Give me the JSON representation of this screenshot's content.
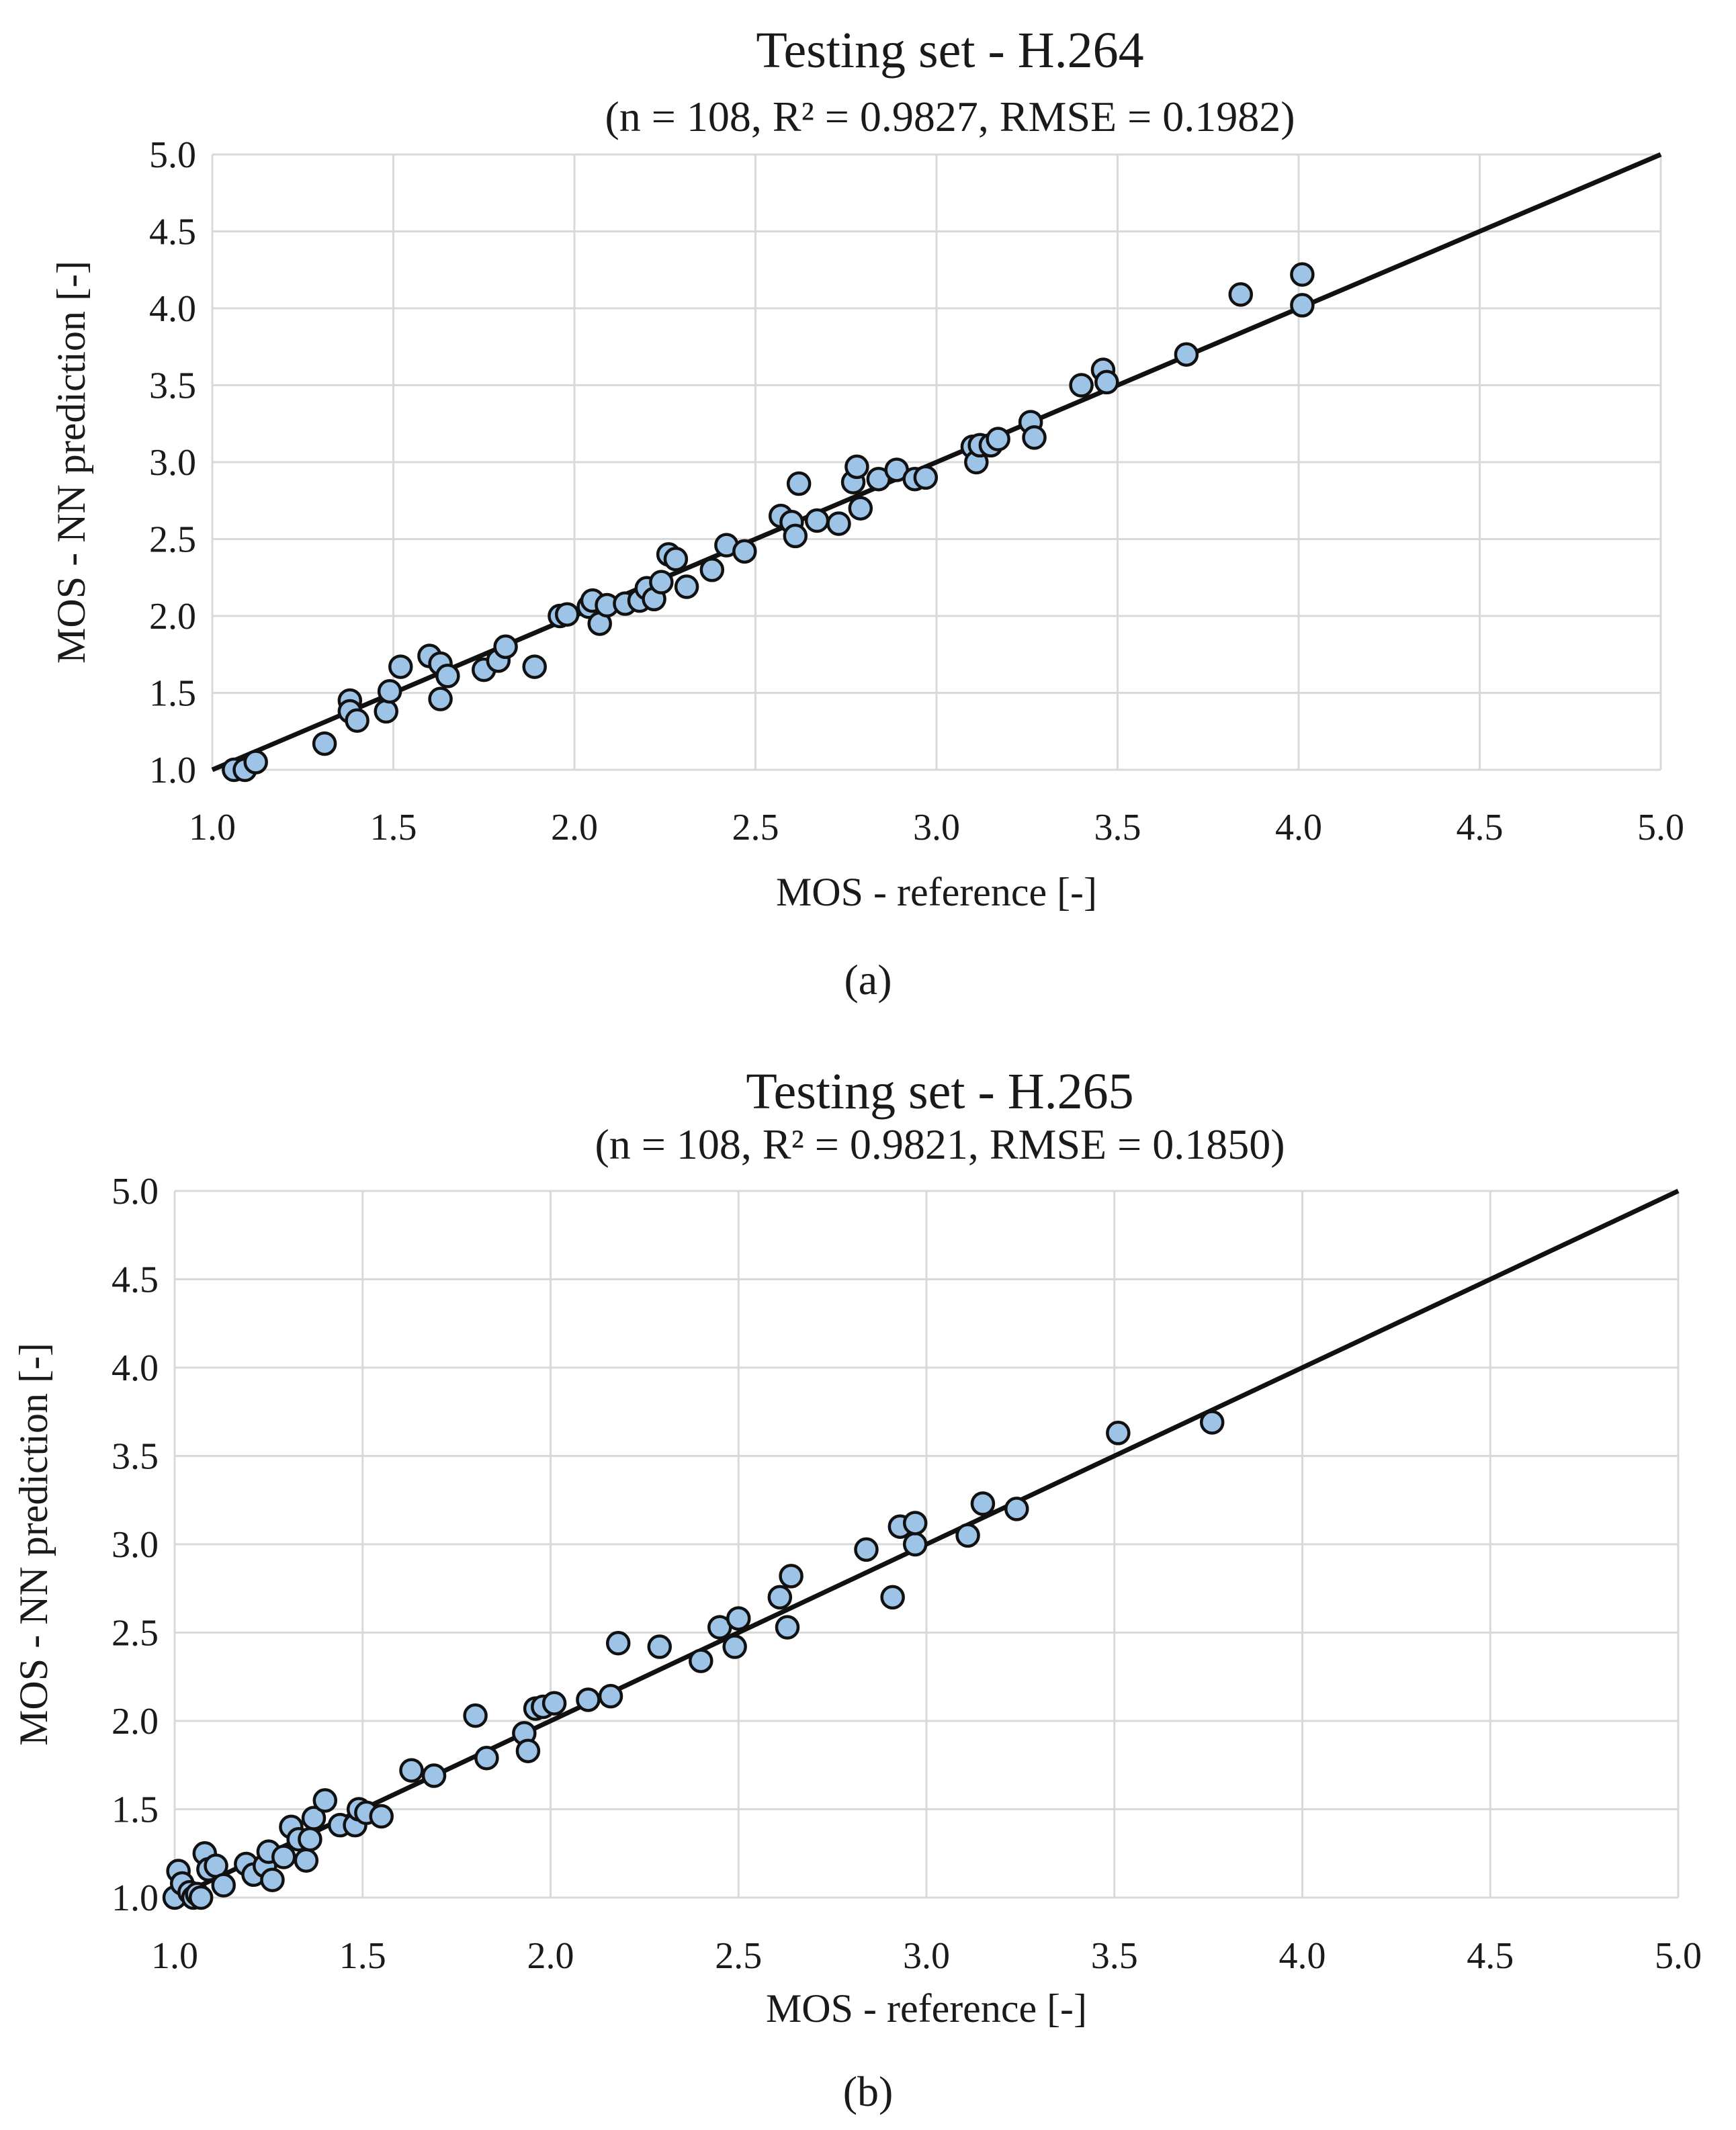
{
  "chart_data": [
    {
      "type": "scatter",
      "panel_label": "(a)",
      "title": "Testing set - H.264",
      "subtitle": "(n = 108, R² = 0.9827, RMSE = 0.1982)",
      "xlabel": "MOS - reference [-]",
      "ylabel": "MOS - NN prediction [-]",
      "xlim": [
        1.0,
        5.0
      ],
      "ylim": [
        1.0,
        5.0
      ],
      "xticks": [
        "1.0",
        "1.5",
        "2.0",
        "2.5",
        "3.0",
        "3.5",
        "4.0",
        "4.5",
        "5.0"
      ],
      "yticks": [
        "1.0",
        "1.5",
        "2.0",
        "2.5",
        "3.0",
        "3.5",
        "4.0",
        "4.5",
        "5.0"
      ],
      "grid": true,
      "reference_line": [
        [
          1.0,
          1.0
        ],
        [
          5.0,
          5.0
        ]
      ],
      "marker_color": "#9dc3e6",
      "points": [
        [
          1.06,
          1.0
        ],
        [
          1.09,
          1.0
        ],
        [
          1.12,
          1.05
        ],
        [
          1.31,
          1.17
        ],
        [
          1.38,
          1.45
        ],
        [
          1.38,
          1.38
        ],
        [
          1.4,
          1.32
        ],
        [
          1.48,
          1.38
        ],
        [
          1.49,
          1.51
        ],
        [
          1.52,
          1.67
        ],
        [
          1.6,
          1.74
        ],
        [
          1.63,
          1.69
        ],
        [
          1.63,
          1.46
        ],
        [
          1.65,
          1.61
        ],
        [
          1.75,
          1.65
        ],
        [
          1.79,
          1.71
        ],
        [
          1.81,
          1.8
        ],
        [
          1.89,
          1.67
        ],
        [
          1.96,
          2.0
        ],
        [
          1.98,
          2.01
        ],
        [
          2.04,
          2.06
        ],
        [
          2.05,
          2.1
        ],
        [
          2.07,
          1.95
        ],
        [
          2.09,
          2.07
        ],
        [
          2.14,
          2.08
        ],
        [
          2.18,
          2.1
        ],
        [
          2.2,
          2.18
        ],
        [
          2.22,
          2.11
        ],
        [
          2.24,
          2.22
        ],
        [
          2.26,
          2.4
        ],
        [
          2.28,
          2.37
        ],
        [
          2.31,
          2.19
        ],
        [
          2.38,
          2.3
        ],
        [
          2.42,
          2.46
        ],
        [
          2.47,
          2.42
        ],
        [
          2.57,
          2.65
        ],
        [
          2.6,
          2.61
        ],
        [
          2.61,
          2.52
        ],
        [
          2.62,
          2.86
        ],
        [
          2.67,
          2.62
        ],
        [
          2.73,
          2.6
        ],
        [
          2.77,
          2.87
        ],
        [
          2.78,
          2.97
        ],
        [
          2.79,
          2.7
        ],
        [
          2.84,
          2.89
        ],
        [
          2.89,
          2.95
        ],
        [
          2.94,
          2.89
        ],
        [
          2.97,
          2.9
        ],
        [
          3.1,
          3.1
        ],
        [
          3.11,
          3.0
        ],
        [
          3.12,
          3.11
        ],
        [
          3.15,
          3.11
        ],
        [
          3.17,
          3.15
        ],
        [
          3.26,
          3.26
        ],
        [
          3.27,
          3.16
        ],
        [
          3.4,
          3.5
        ],
        [
          3.46,
          3.6
        ],
        [
          3.47,
          3.52
        ],
        [
          3.69,
          3.7
        ],
        [
          3.84,
          4.09
        ],
        [
          4.01,
          4.22
        ],
        [
          4.01,
          4.02
        ]
      ]
    },
    {
      "type": "scatter",
      "panel_label": "(b)",
      "title": "Testing set - H.265",
      "subtitle": "(n = 108, R² = 0.9821, RMSE = 0.1850)",
      "xlabel": "MOS - reference [-]",
      "ylabel": "MOS - NN prediction [-]",
      "xlim": [
        1.0,
        5.0
      ],
      "ylim": [
        1.0,
        5.0
      ],
      "xticks": [
        "1.0",
        "1.5",
        "2.0",
        "2.5",
        "3.0",
        "3.5",
        "4.0",
        "4.5",
        "5.0"
      ],
      "yticks": [
        "1.0",
        "1.5",
        "2.0",
        "2.5",
        "3.0",
        "3.5",
        "4.0",
        "4.5",
        "5.0"
      ],
      "grid": true,
      "reference_line": [
        [
          1.0,
          1.0
        ],
        [
          5.0,
          5.0
        ]
      ],
      "marker_color": "#9dc3e6",
      "points": [
        [
          1.0,
          1.0
        ],
        [
          1.01,
          1.15
        ],
        [
          1.02,
          1.08
        ],
        [
          1.04,
          1.03
        ],
        [
          1.05,
          1.0
        ],
        [
          1.06,
          1.02
        ],
        [
          1.07,
          1.0
        ],
        [
          1.08,
          1.25
        ],
        [
          1.09,
          1.16
        ],
        [
          1.11,
          1.18
        ],
        [
          1.13,
          1.07
        ],
        [
          1.19,
          1.19
        ],
        [
          1.21,
          1.13
        ],
        [
          1.24,
          1.18
        ],
        [
          1.25,
          1.26
        ],
        [
          1.26,
          1.1
        ],
        [
          1.29,
          1.23
        ],
        [
          1.31,
          1.4
        ],
        [
          1.33,
          1.33
        ],
        [
          1.35,
          1.21
        ],
        [
          1.36,
          1.33
        ],
        [
          1.37,
          1.45
        ],
        [
          1.4,
          1.55
        ],
        [
          1.44,
          1.41
        ],
        [
          1.48,
          1.41
        ],
        [
          1.49,
          1.5
        ],
        [
          1.51,
          1.48
        ],
        [
          1.55,
          1.46
        ],
        [
          1.63,
          1.72
        ],
        [
          1.69,
          1.69
        ],
        [
          1.8,
          2.03
        ],
        [
          1.83,
          1.79
        ],
        [
          1.93,
          1.93
        ],
        [
          1.94,
          1.83
        ],
        [
          1.96,
          2.07
        ],
        [
          1.98,
          2.08
        ],
        [
          2.01,
          2.1
        ],
        [
          2.1,
          2.12
        ],
        [
          2.16,
          2.14
        ],
        [
          2.18,
          2.44
        ],
        [
          2.29,
          2.42
        ],
        [
          2.4,
          2.34
        ],
        [
          2.45,
          2.53
        ],
        [
          2.49,
          2.42
        ],
        [
          2.5,
          2.58
        ],
        [
          2.61,
          2.7
        ],
        [
          2.63,
          2.53
        ],
        [
          2.64,
          2.82
        ],
        [
          2.84,
          2.97
        ],
        [
          2.91,
          2.7
        ],
        [
          2.93,
          3.1
        ],
        [
          2.97,
          3.0
        ],
        [
          2.97,
          3.12
        ],
        [
          3.11,
          3.05
        ],
        [
          3.15,
          3.23
        ],
        [
          3.24,
          3.2
        ],
        [
          3.51,
          3.63
        ],
        [
          3.76,
          3.69
        ]
      ]
    }
  ]
}
